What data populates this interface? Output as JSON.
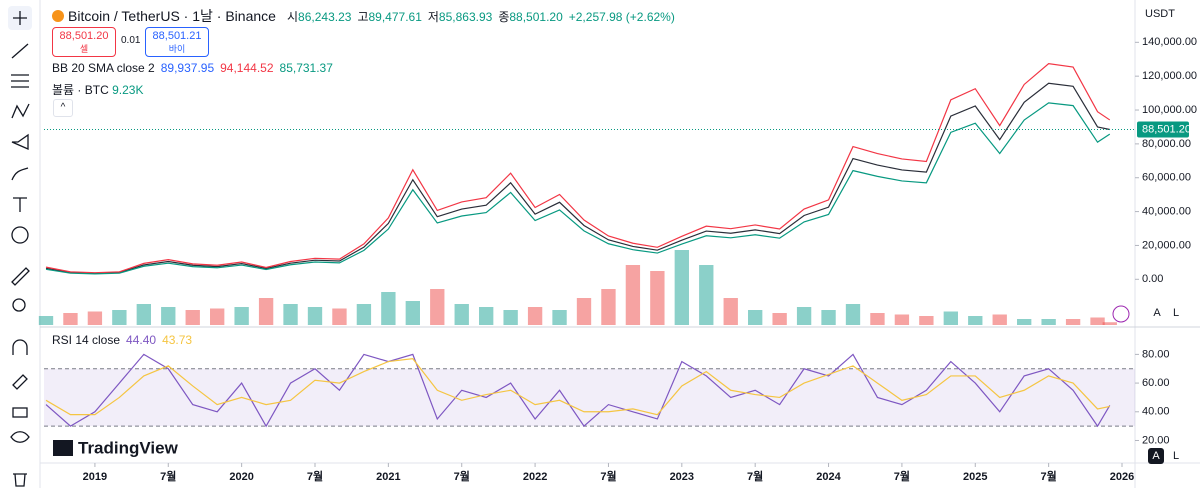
{
  "ui": {
    "symbol": "Bitcoin / TetherUS · 1날 · Binance",
    "ohlc_labels": [
      "시",
      "고",
      "저",
      "종"
    ],
    "ohlc_values": [
      "86,243.23",
      "89,477.61",
      "85,863.93",
      "88,501.20"
    ],
    "change": "+2,257.98 (+2.62%)",
    "sell_price": "88,501.20",
    "sell_label": "셀",
    "spread": "0.01",
    "buy_price": "88,501.21",
    "buy_label": "바이",
    "currency": "USDT",
    "scale_buttons": [
      "A",
      "L"
    ],
    "logo": "TradingView"
  },
  "chart_data": [
    {
      "type": "line",
      "title": "BB 20 SMA close 2",
      "indicator_values": [
        "89,937.95",
        "94,144.52",
        "85,731.37"
      ],
      "indicator_colors": [
        "#2962ff",
        "#f23645",
        "#089981"
      ],
      "x": [
        "2018-09",
        "2018-11",
        "2019-01",
        "2019-03",
        "2019-05",
        "2019-07",
        "2019-09",
        "2019-11",
        "2020-01",
        "2020-03",
        "2020-05",
        "2020-07",
        "2020-09",
        "2020-11",
        "2021-01",
        "2021-03",
        "2021-05",
        "2021-07",
        "2021-09",
        "2021-11",
        "2022-01",
        "2022-03",
        "2022-05",
        "2022-07",
        "2022-09",
        "2022-11",
        "2023-01",
        "2023-03",
        "2023-05",
        "2023-07",
        "2023-09",
        "2023-11",
        "2024-01",
        "2024-03",
        "2024-05",
        "2024-07",
        "2024-09",
        "2024-11",
        "2025-01",
        "2025-03",
        "2025-05",
        "2025-07",
        "2025-09",
        "2025-11",
        "2025-12"
      ],
      "xlim": [
        "2018-09",
        "2026-01"
      ],
      "xticks": [
        {
          "value": "2019-01",
          "label": "2019"
        },
        {
          "value": "2019-07",
          "label": "7월"
        },
        {
          "value": "2020-01",
          "label": "2020"
        },
        {
          "value": "2020-07",
          "label": "7월"
        },
        {
          "value": "2021-01",
          "label": "2021"
        },
        {
          "value": "2021-07",
          "label": "7월"
        },
        {
          "value": "2022-01",
          "label": "2022"
        },
        {
          "value": "2022-07",
          "label": "7월"
        },
        {
          "value": "2023-01",
          "label": "2023"
        },
        {
          "value": "2023-07",
          "label": "7월"
        },
        {
          "value": "2024-01",
          "label": "2024"
        },
        {
          "value": "2024-07",
          "label": "7월"
        },
        {
          "value": "2025-01",
          "label": "2025"
        },
        {
          "value": "2025-07",
          "label": "7월"
        },
        {
          "value": "2026-01",
          "label": "2026"
        }
      ],
      "ylim": [
        -27000,
        165000
      ],
      "yticks": [
        {
          "value": 0,
          "label": "0.00"
        },
        {
          "value": 20000,
          "label": "20,000.00"
        },
        {
          "value": 40000,
          "label": "40,000.00"
        },
        {
          "value": 60000,
          "label": "60,000.00"
        },
        {
          "value": 80000,
          "label": "80,000.00"
        },
        {
          "value": 100000,
          "label": "100,000.00"
        },
        {
          "value": 120000,
          "label": "120,000.00"
        },
        {
          "value": 140000,
          "label": "140,000.00"
        }
      ],
      "series": [
        {
          "color": "#2a2e39",
          "values": [
            6500,
            4000,
            3500,
            4000,
            8500,
            10500,
            8300,
            7500,
            9300,
            6400,
            9500,
            11300,
            10800,
            19000,
            33000,
            58800,
            37000,
            41500,
            43800,
            57000,
            38500,
            45500,
            31800,
            23300,
            19400,
            17200,
            23100,
            28500,
            27200,
            29200,
            27000,
            37700,
            42600,
            71300,
            67500,
            64600,
            63300,
            96400,
            102400,
            82500,
            104600,
            115800,
            114000,
            90000,
            88501.2
          ]
        },
        {
          "color": "#f23645",
          "values": [
            7200,
            4400,
            3900,
            4400,
            9400,
            11600,
            9100,
            8300,
            10200,
            7000,
            10500,
            12400,
            11900,
            20900,
            36300,
            64700,
            40700,
            45700,
            48200,
            62700,
            42400,
            50100,
            35000,
            25600,
            21300,
            18900,
            25400,
            31400,
            29900,
            32100,
            29700,
            41500,
            46900,
            78400,
            74300,
            71100,
            69600,
            106000,
            112600,
            90800,
            115100,
            127400,
            125400,
            99000,
            94144.52
          ]
        },
        {
          "color": "#089981",
          "values": [
            5900,
            3600,
            3200,
            3600,
            7700,
            9500,
            7500,
            6800,
            8400,
            5800,
            8600,
            10200,
            9700,
            17100,
            29700,
            52900,
            33300,
            37400,
            39400,
            51300,
            34700,
            41000,
            28600,
            21000,
            17500,
            15500,
            20800,
            25700,
            24500,
            26300,
            24300,
            33900,
            38300,
            64200,
            60800,
            58100,
            57000,
            86800,
            92200,
            74300,
            94100,
            104200,
            102600,
            81000,
            85731.37
          ]
        }
      ],
      "last_price": {
        "value": 88501.2,
        "label": "88,501.20"
      }
    },
    {
      "type": "bar",
      "title": "볼륨 · BTC",
      "last_label": "9.23K",
      "colors": [
        "#26a69a88",
        "#ef535088"
      ],
      "values": [
        30000,
        40000,
        45000,
        50000,
        70000,
        60000,
        50000,
        55000,
        60000,
        90000,
        70000,
        60000,
        55000,
        70000,
        110000,
        80000,
        120000,
        70000,
        60000,
        50000,
        60000,
        50000,
        90000,
        120000,
        200000,
        180000,
        250000,
        200000,
        90000,
        50000,
        40000,
        60000,
        50000,
        70000,
        40000,
        35000,
        30000,
        45000,
        30000,
        35000,
        20000,
        20000,
        20000,
        25000,
        9230
      ]
    },
    {
      "type": "line",
      "title": "RSI 14 close",
      "ylim": [
        5,
        97
      ],
      "yticks": [
        {
          "value": 20,
          "label": "20.00"
        },
        {
          "value": 40,
          "label": "40.00"
        },
        {
          "value": 60,
          "label": "60.00"
        },
        {
          "value": 80,
          "label": "80.00"
        }
      ],
      "bands": [
        30,
        70
      ],
      "series": [
        {
          "color": "#7e57c2",
          "last_label": "44.40",
          "values": [
            45,
            30,
            40,
            60,
            80,
            70,
            45,
            40,
            60,
            30,
            60,
            70,
            55,
            80,
            75,
            80,
            35,
            55,
            50,
            60,
            35,
            55,
            30,
            45,
            40,
            35,
            75,
            65,
            50,
            55,
            45,
            70,
            65,
            80,
            50,
            45,
            55,
            75,
            60,
            40,
            65,
            70,
            55,
            30,
            44.4
          ]
        },
        {
          "color": "#f5c542",
          "last_label": "43.73",
          "values": [
            48,
            38,
            38,
            50,
            65,
            72,
            58,
            45,
            50,
            45,
            48,
            62,
            60,
            68,
            75,
            77,
            55,
            48,
            52,
            55,
            45,
            48,
            40,
            40,
            42,
            38,
            58,
            68,
            55,
            52,
            50,
            60,
            66,
            72,
            60,
            48,
            52,
            65,
            65,
            50,
            55,
            65,
            60,
            42,
            43.73
          ]
        }
      ]
    }
  ]
}
